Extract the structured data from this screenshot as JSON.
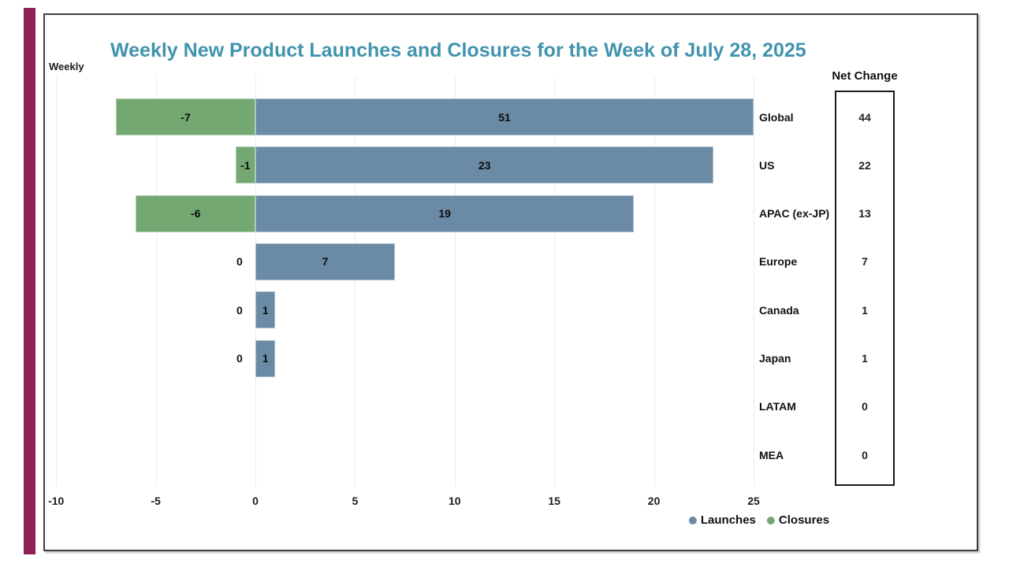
{
  "header": {
    "corner_label": "Weekly",
    "title_color": "#4193ae"
  },
  "colors": {
    "accent_bar": "#8e2055",
    "frame_border": "#3f3f3f",
    "gridline": "#ececec",
    "launches": "#6a8aa5",
    "closures": "#74a873"
  },
  "chart_data": {
    "type": "bar",
    "orientation": "horizontal-diverging",
    "title": "Weekly New Product Launches and Closures for the Week of July 28, 2025",
    "categories": [
      "Global",
      "US",
      "APAC (ex-JP)",
      "Europe",
      "Canada",
      "Japan",
      "LATAM",
      "MEA"
    ],
    "series": [
      {
        "name": "Launches",
        "color": "#6a8aa5",
        "values": [
          51,
          23,
          19,
          7,
          1,
          1,
          0,
          0
        ]
      },
      {
        "name": "Closures",
        "color": "#74a873",
        "values": [
          -7,
          -1,
          -6,
          0,
          0,
          0,
          0,
          0
        ]
      }
    ],
    "net_change": {
      "header": "Net Change",
      "values": [
        44,
        22,
        13,
        7,
        1,
        1,
        0,
        0
      ]
    },
    "x_ticks": [
      -10,
      -5,
      0,
      5,
      10,
      15,
      20,
      25
    ],
    "xlim": [
      -10,
      25
    ],
    "bar_display_clip": 25,
    "grid": true,
    "legend": {
      "position": "bottom",
      "entries": [
        {
          "label": "Launches",
          "color": "#6a8aa5"
        },
        {
          "label": "Closures",
          "color": "#74a873"
        }
      ]
    }
  }
}
